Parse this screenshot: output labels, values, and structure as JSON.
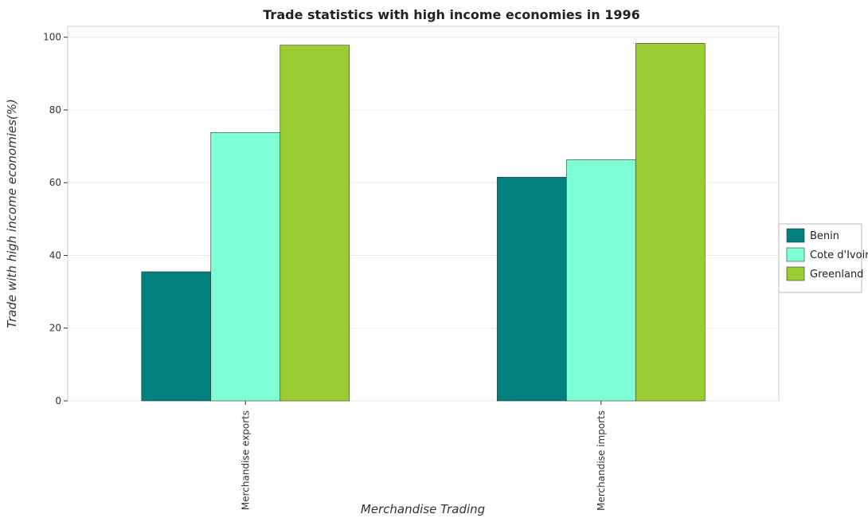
{
  "chart_data": {
    "type": "bar",
    "title": "Trade statistics with high income economies in 1996",
    "xlabel": "Merchandise Trading",
    "ylabel": "Trade with high income economies(%)",
    "categories": [
      "Merchandise exports",
      "Merchandise imports"
    ],
    "series": [
      {
        "name": "Benin",
        "color": "#00807f",
        "values": [
          35.5,
          61.5
        ]
      },
      {
        "name": "Cote d'Ivoire",
        "color": "#7fffd4",
        "values": [
          73.8,
          66.3
        ]
      },
      {
        "name": "Greenland",
        "color": "#9acd32",
        "values": [
          97.8,
          98.3
        ]
      }
    ],
    "ylim": [
      0,
      103
    ],
    "yticks": [
      0,
      20,
      40,
      60,
      80,
      100
    ],
    "grid": true,
    "legend_position": "right"
  }
}
